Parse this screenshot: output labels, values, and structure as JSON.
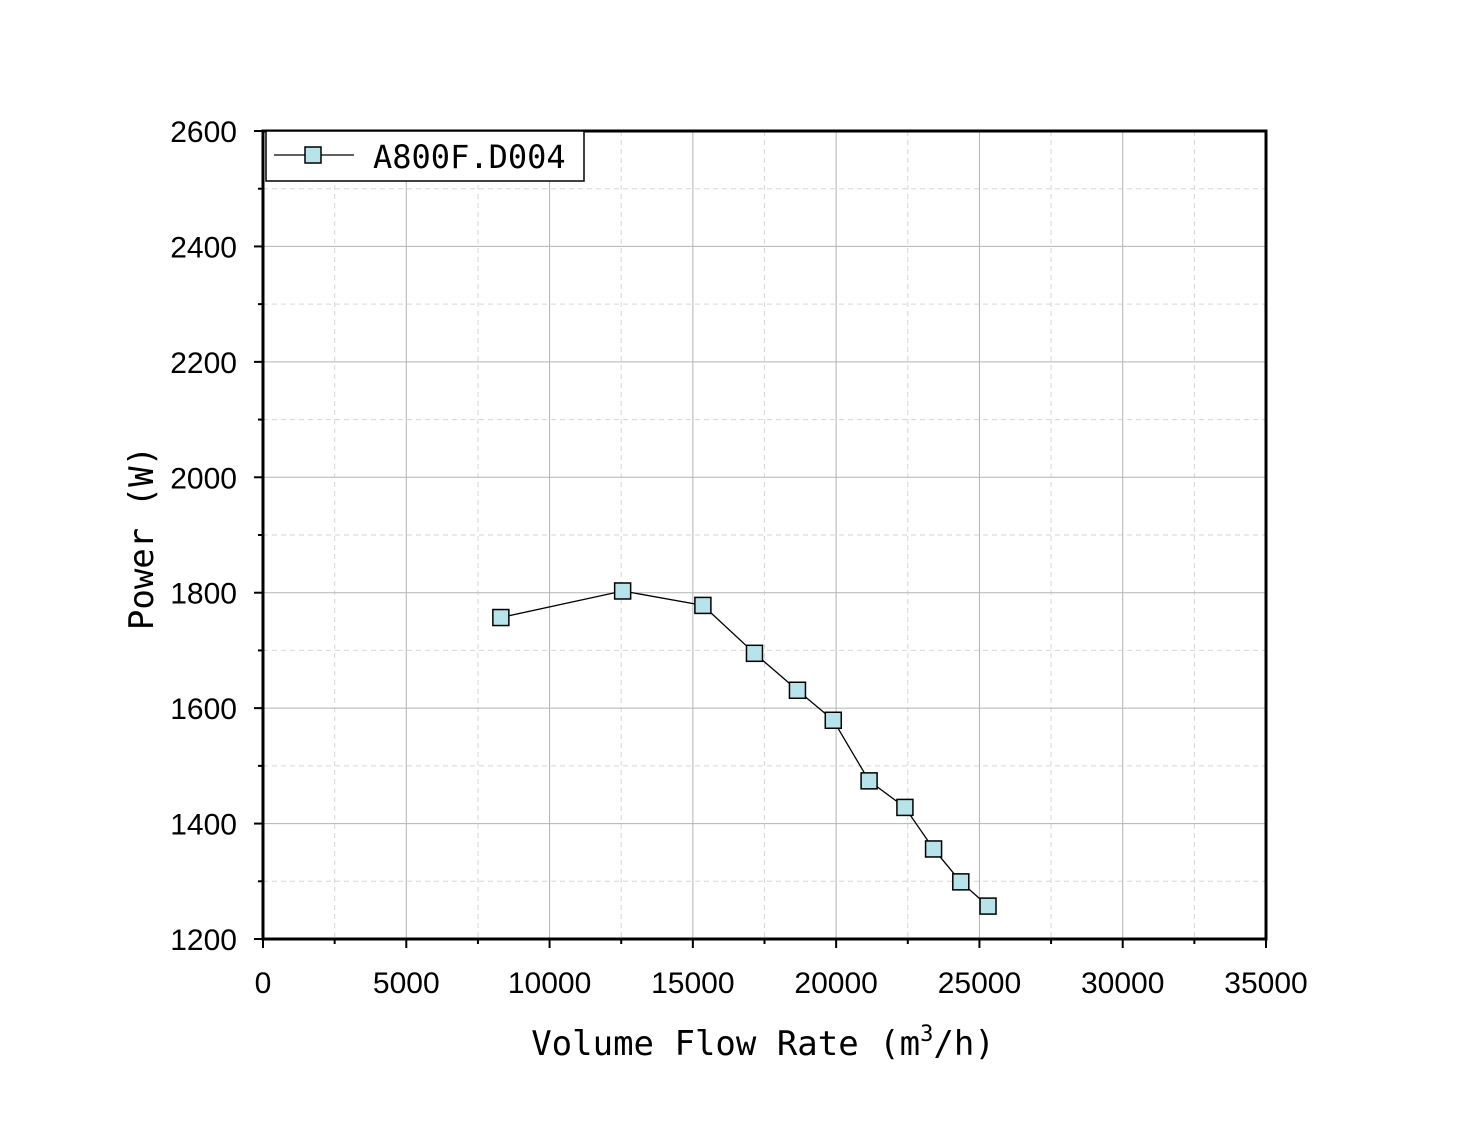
{
  "chart_data": {
    "type": "line",
    "title": "",
    "xlabel": {
      "main": "Volume Flow Rate (m",
      "sup": "3",
      "tail": "/h)"
    },
    "ylabel": "Power (W)",
    "xlim": [
      0,
      35000
    ],
    "ylim": [
      1200,
      2600
    ],
    "xticks": [
      0,
      5000,
      10000,
      15000,
      20000,
      25000,
      30000,
      35000
    ],
    "xtick_labels": [
      "0",
      "5000",
      "10000",
      "15000",
      "20000",
      "25000",
      "30000",
      "35000"
    ],
    "yticks": [
      1200,
      1400,
      1600,
      1800,
      2000,
      2200,
      2400,
      2600
    ],
    "ytick_labels": [
      "1200",
      "1400",
      "1600",
      "1800",
      "2000",
      "2200",
      "2400",
      "2600"
    ],
    "grid": true,
    "legend_position": "top-left",
    "marker": "square",
    "marker_fill": "#b7e3ea",
    "line_color": "#000000",
    "series": [
      {
        "name": "A800F.D004",
        "x": [
          8300,
          12550,
          15350,
          17150,
          18650,
          19900,
          21150,
          22400,
          23400,
          24350,
          25300
        ],
        "y": [
          1757,
          1803,
          1778,
          1695,
          1631,
          1579,
          1474,
          1428,
          1356,
          1299,
          1257
        ]
      }
    ]
  }
}
